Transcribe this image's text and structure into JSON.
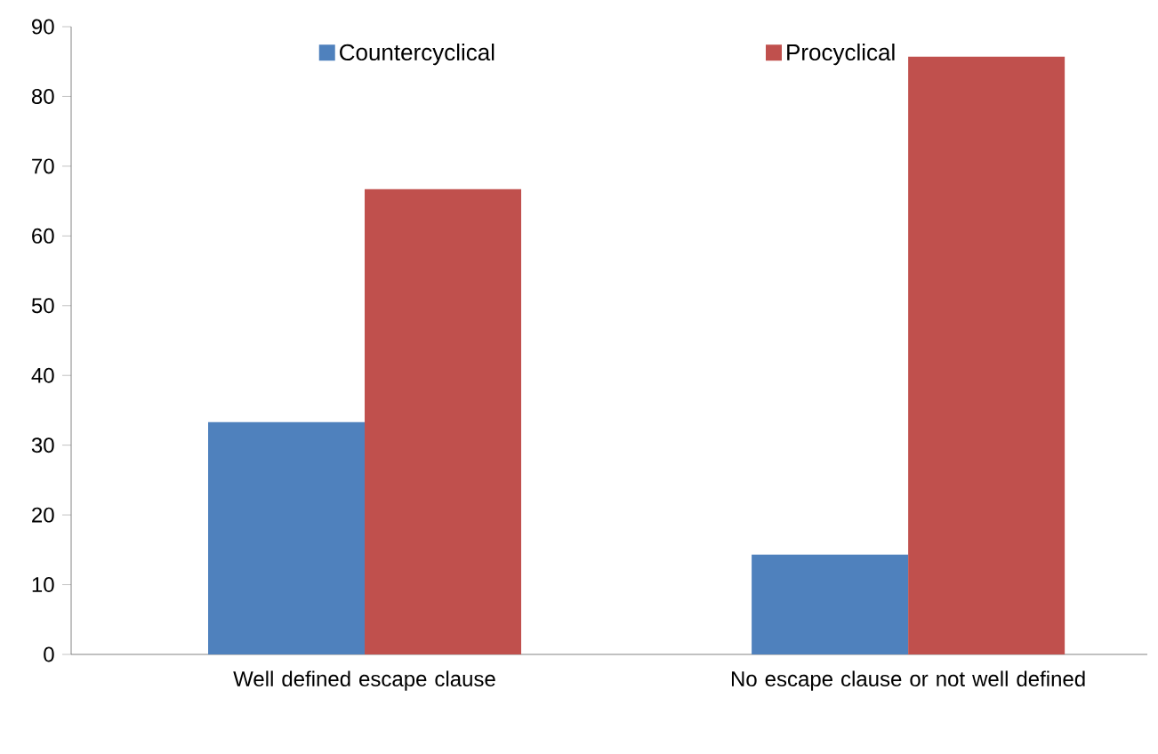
{
  "chart_data": {
    "type": "bar",
    "categories": [
      "Well defined escape clause",
      "No escape clause or not well defined"
    ],
    "series": [
      {
        "name": "Countercyclical",
        "color": "#4f81bd",
        "values": [
          33.3,
          14.3
        ]
      },
      {
        "name": "Procyclical",
        "color": "#c0504d",
        "values": [
          66.7,
          85.7
        ]
      }
    ],
    "ylim": [
      0,
      90
    ],
    "yticks": [
      0,
      10,
      20,
      30,
      40,
      50,
      60,
      70,
      80,
      90
    ],
    "grid": false,
    "legend": "top"
  }
}
